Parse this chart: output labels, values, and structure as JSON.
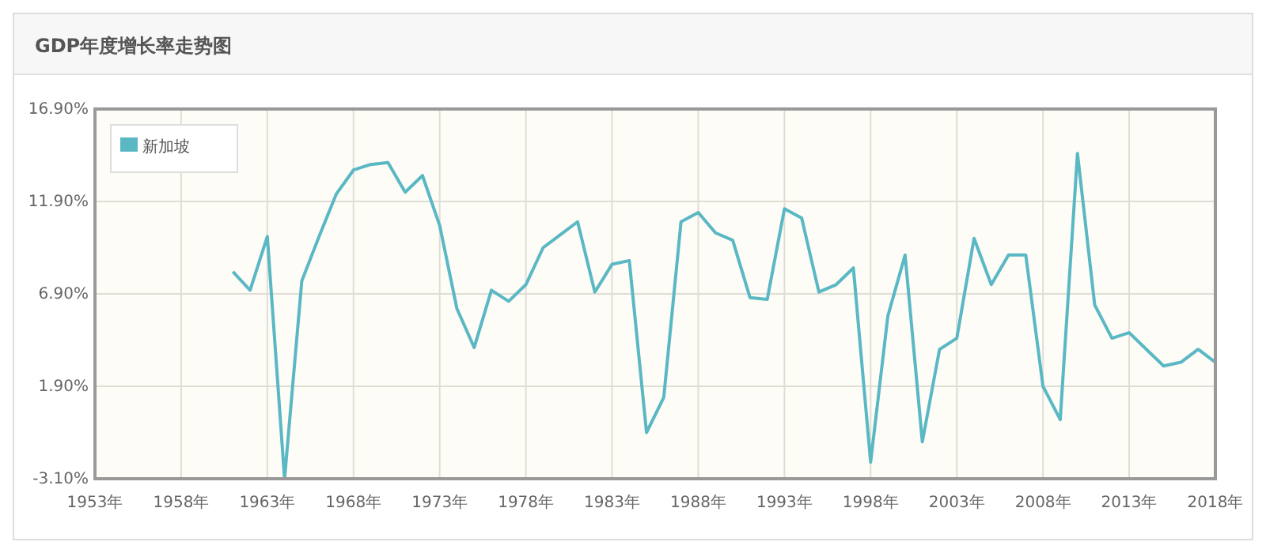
{
  "chart_data": {
    "type": "line",
    "title": "GDP年度增长率走势图",
    "x": [
      1961,
      1962,
      1963,
      1964,
      1965,
      1966,
      1967,
      1968,
      1969,
      1970,
      1971,
      1972,
      1973,
      1974,
      1975,
      1976,
      1977,
      1978,
      1979,
      1980,
      1981,
      1982,
      1983,
      1984,
      1985,
      1986,
      1987,
      1988,
      1989,
      1990,
      1991,
      1992,
      1993,
      1994,
      1995,
      1996,
      1997,
      1998,
      1999,
      2000,
      2001,
      2002,
      2003,
      2004,
      2005,
      2006,
      2007,
      2008,
      2009,
      2010,
      2011,
      2012,
      2013,
      2014,
      2015,
      2016,
      2017,
      2018
    ],
    "series": [
      {
        "name": "新加坡",
        "color": "#5ab8c4",
        "values": [
          8.1,
          7.1,
          10.0,
          -3.1,
          7.6,
          10.0,
          12.3,
          13.6,
          13.9,
          14.0,
          12.4,
          13.3,
          10.6,
          6.1,
          4.0,
          7.1,
          6.5,
          7.4,
          9.4,
          10.1,
          10.8,
          7.0,
          8.5,
          8.7,
          -0.6,
          1.3,
          10.8,
          11.3,
          10.2,
          9.8,
          6.7,
          6.6,
          11.5,
          11.0,
          7.0,
          7.4,
          8.3,
          -2.2,
          5.7,
          9.0,
          -1.1,
          3.9,
          4.5,
          9.9,
          7.4,
          9.0,
          9.0,
          1.9,
          0.1,
          14.5,
          6.3,
          4.5,
          4.8,
          3.9,
          3.0,
          3.2,
          3.9,
          3.2
        ]
      }
    ],
    "xlim": [
      1953,
      2018
    ],
    "xticks": [
      {
        "value": 1953,
        "label": "1953年"
      },
      {
        "value": 1958,
        "label": "1958年"
      },
      {
        "value": 1963,
        "label": "1963年"
      },
      {
        "value": 1968,
        "label": "1968年"
      },
      {
        "value": 1973,
        "label": "1973年"
      },
      {
        "value": 1978,
        "label": "1978年"
      },
      {
        "value": 1983,
        "label": "1983年"
      },
      {
        "value": 1988,
        "label": "1988年"
      },
      {
        "value": 1993,
        "label": "1993年"
      },
      {
        "value": 1998,
        "label": "1998年"
      },
      {
        "value": 2003,
        "label": "2003年"
      },
      {
        "value": 2008,
        "label": "2008年"
      },
      {
        "value": 2013,
        "label": "2013年"
      },
      {
        "value": 2018,
        "label": "2018年"
      }
    ],
    "ylim": [
      -3.1,
      16.9
    ],
    "yticks": [
      {
        "value": -3.1,
        "label": "-3.10%"
      },
      {
        "value": 1.9,
        "label": "1.90%"
      },
      {
        "value": 6.9,
        "label": "6.90%"
      },
      {
        "value": 11.9,
        "label": "11.90%"
      },
      {
        "value": 16.9,
        "label": "16.90%"
      }
    ],
    "grid": true,
    "legend": "top left",
    "line_style": "solid",
    "marker": "none"
  }
}
